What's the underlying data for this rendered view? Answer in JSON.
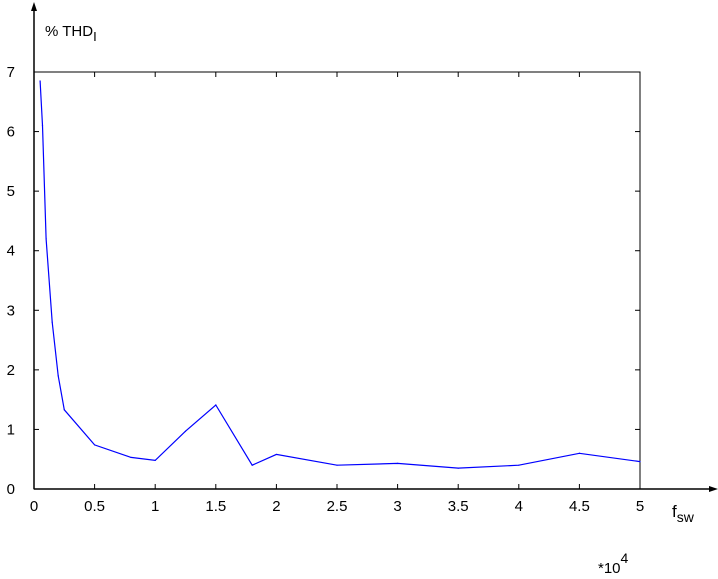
{
  "chart_data": {
    "type": "line",
    "ylabel": "% THD",
    "ylabel_subscript": "I",
    "xlabel": "f",
    "xlabel_subscript": "sw",
    "x_multiplier_base": "*10",
    "x_multiplier_exp": "4",
    "xlim": [
      0,
      5
    ],
    "ylim": [
      0,
      7
    ],
    "x_ticks": [
      "0",
      "0.5",
      "1",
      "1.5",
      "2",
      "2.5",
      "3",
      "3.5",
      "4",
      "4.5",
      "5"
    ],
    "y_ticks": [
      "0",
      "1",
      "2",
      "3",
      "4",
      "5",
      "6",
      "7"
    ],
    "grid": false,
    "series": [
      {
        "color": "#0000ff",
        "x": [
          0.05,
          0.07,
          0.1,
          0.15,
          0.2,
          0.25,
          0.5,
          0.8,
          1.0,
          1.25,
          1.5,
          1.8,
          2.0,
          2.5,
          3.0,
          3.5,
          4.0,
          4.5,
          5.0
        ],
        "y": [
          6.85,
          6.1,
          4.2,
          2.8,
          1.9,
          1.33,
          0.74,
          0.53,
          0.48,
          0.97,
          1.41,
          0.4,
          0.58,
          0.4,
          0.43,
          0.35,
          0.4,
          0.6,
          0.46
        ]
      }
    ]
  }
}
